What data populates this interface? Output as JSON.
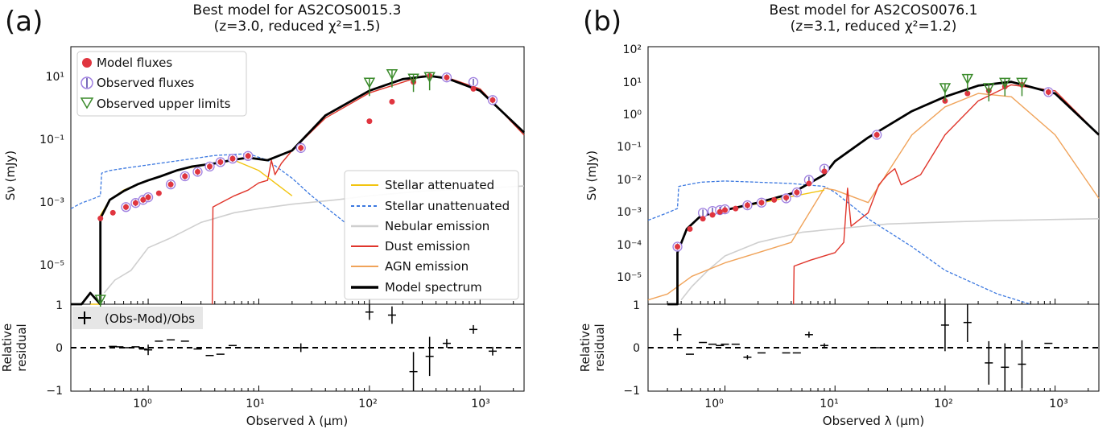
{
  "figure": {
    "panels": [
      {
        "panel_label": "(a)",
        "title_line1": "Best model for AS2COS0015.3",
        "title_line2": "(z=3.0, reduced χ²=1.5)"
      },
      {
        "panel_label": "(b)",
        "title_line1": "Best model for AS2COS0076.1",
        "title_line2": "(z=3.1, reduced χ²=1.2)"
      }
    ],
    "axes": {
      "ylabel_top": "Sν (mJy)",
      "ylabel_bottom_line1": "Relative",
      "ylabel_bottom_line2": "residual",
      "xlabel": "Observed λ (μm)",
      "x_tick_labels": [
        "10⁰",
        "10¹",
        "10²",
        "10³"
      ]
    },
    "legend_upper_left": [
      "Model fluxes",
      "Observed fluxes",
      "Observed upper limits"
    ],
    "legend_lower_right": [
      "Stellar attenuated",
      "Stellar unattenuated",
      "Nebular emission",
      "Dust emission",
      "AGN emission",
      "Model spectrum"
    ],
    "residual_legend": "(Obs-Mod)/Obs",
    "colors": {
      "stellar_attenuated": "#f2c40f",
      "stellar_unattenuated": "#3b78e0",
      "nebular": "#cfcfcf",
      "dust": "#e0352b",
      "agn": "#f0a35a",
      "model": "#000000",
      "model_flux": "#e0353f",
      "observed_flux": "#9f7fe0",
      "upper_limit": "#3a8a2a"
    }
  },
  "chart_data": [
    {
      "type": "scatter",
      "title": "Best model for AS2COS0015.3 (z=3.0, reduced χ²=1.5)",
      "xlabel": "Observed λ (μm)",
      "ylabel": "Sν (mJy)",
      "x_scale": "log",
      "y_scale": "log",
      "xlim": [
        0.2,
        2500
      ],
      "ylim": [
        9e-07,
        80
      ],
      "y_tick_labels": [
        "10¹",
        "10⁻¹",
        "10⁻³",
        "10⁻⁵"
      ],
      "grid": false,
      "legend_placement": [
        "upper-left",
        "lower-right"
      ],
      "series": [
        {
          "name": "Model fluxes",
          "x": [
            0.37,
            0.48,
            0.63,
            0.77,
            0.9,
            1.0,
            1.25,
            1.6,
            2.15,
            2.8,
            3.6,
            4.5,
            5.8,
            8.0,
            24,
            100,
            160,
            250,
            350,
            500,
            870,
            1300
          ],
          "y": [
            0.0004,
            0.0006,
            0.0009,
            0.0012,
            0.0015,
            0.0018,
            0.0024,
            0.0045,
            0.008,
            0.011,
            0.016,
            0.022,
            0.028,
            0.034,
            0.06,
            0.4,
            1.6,
            6.5,
            10.0,
            9.0,
            4.0,
            1.8
          ]
        },
        {
          "name": "Observed fluxes",
          "x": [
            0.63,
            0.77,
            0.9,
            1.0,
            1.6,
            2.15,
            2.8,
            3.6,
            4.5,
            5.8,
            8.0,
            24,
            500,
            870,
            1300
          ],
          "y": [
            0.0009,
            0.0012,
            0.0015,
            0.0018,
            0.0045,
            0.008,
            0.011,
            0.016,
            0.022,
            0.028,
            0.034,
            0.06,
            9.0,
            6.5,
            1.8
          ]
        },
        {
          "name": "Observed upper limits",
          "x": [
            0.37,
            100,
            160,
            250,
            350
          ],
          "y": [
            1.2e-06,
            6.0,
            11.0,
            8.0,
            9.0
          ]
        },
        {
          "name": "Stellar attenuated",
          "x": [
            0.3,
            0.37,
            0.37,
            0.45,
            0.6,
            0.8,
            1.0,
            1.3,
            1.8,
            2.5,
            4,
            6,
            10,
            20
          ],
          "y": [
            9e-07,
            9e-07,
            0.0005,
            0.0015,
            0.003,
            0.0045,
            0.006,
            0.008,
            0.012,
            0.015,
            0.02,
            0.025,
            0.012,
            0.002
          ]
        },
        {
          "name": "Stellar unattenuated",
          "x": [
            0.2,
            0.25,
            0.3,
            0.37,
            0.38,
            0.45,
            0.6,
            1.0,
            2,
            4,
            8,
            12,
            20,
            30,
            60
          ],
          "y": [
            0.0008,
            0.0012,
            0.0015,
            0.002,
            0.01,
            0.012,
            0.014,
            0.018,
            0.025,
            0.035,
            0.04,
            0.025,
            0.007,
            0.002,
            0.0003
          ]
        },
        {
          "name": "Nebular emission",
          "x": [
            0.4,
            0.5,
            0.7,
            1.0,
            1.6,
            3,
            6,
            10,
            20,
            50,
            100,
            300,
            1000,
            2500
          ],
          "y": [
            2e-06,
            5e-06,
            1e-05,
            5e-05,
            0.0001,
            0.0003,
            0.0006,
            0.0008,
            0.0011,
            0.0015,
            0.002,
            0.0028,
            0.0034,
            0.004
          ]
        },
        {
          "name": "Dust emission",
          "x": [
            3.8,
            3.85,
            4.5,
            6,
            8,
            10,
            12,
            13,
            14,
            16,
            20,
            40,
            100,
            300,
            500,
            1000,
            2500
          ],
          "y": [
            9e-07,
            0.0009,
            0.0012,
            0.002,
            0.003,
            0.005,
            0.006,
            0.025,
            0.009,
            0.02,
            0.05,
            0.5,
            3,
            10,
            9,
            4,
            0.15
          ]
        },
        {
          "name": "AGN emission",
          "x": [],
          "y": []
        },
        {
          "name": "Model spectrum",
          "x": [
            0.2,
            0.25,
            0.3,
            0.37,
            0.37,
            0.45,
            0.6,
            0.8,
            1.0,
            1.3,
            1.8,
            2.5,
            4,
            6,
            8,
            12,
            20,
            40,
            100,
            200,
            350,
            500,
            1000,
            2500
          ],
          "y": [
            9e-07,
            9e-07,
            2e-06,
            9e-07,
            0.0004,
            0.0015,
            0.0028,
            0.0045,
            0.006,
            0.008,
            0.012,
            0.016,
            0.02,
            0.026,
            0.03,
            0.025,
            0.05,
            0.6,
            3.5,
            8,
            10,
            8.5,
            3.5,
            0.18
          ]
        }
      ]
    },
    {
      "type": "scatter",
      "title": "Best model for AS2COS0076.1 (z=3.1, reduced χ²=1.2)",
      "xlabel": "Observed λ (μm)",
      "ylabel": "Sν (mJy)",
      "x_scale": "log",
      "y_scale": "log",
      "xlim": [
        0.2,
        2500
      ],
      "ylim": [
        3e-06,
        120
      ],
      "y_tick_labels": [
        "10²",
        "10¹",
        "10⁰",
        "10⁻¹",
        "10⁻²",
        "10⁻³",
        "10⁻⁴",
        "10⁻⁵"
      ],
      "grid": false,
      "series": [
        {
          "name": "Model fluxes",
          "x": [
            0.37,
            0.48,
            0.63,
            0.77,
            0.9,
            1.0,
            1.25,
            1.6,
            2.15,
            2.8,
            3.6,
            4.5,
            5.8,
            8.0,
            24,
            100,
            160,
            250,
            350,
            500,
            870
          ],
          "y": [
            0.00015,
            0.0005,
            0.001,
            0.0013,
            0.0016,
            0.0018,
            0.002,
            0.0025,
            0.003,
            0.0036,
            0.0042,
            0.006,
            0.011,
            0.025,
            0.3,
            3,
            5,
            6,
            8,
            9,
            5.5
          ]
        },
        {
          "name": "Observed fluxes",
          "x": [
            0.37,
            0.63,
            0.77,
            0.9,
            1.0,
            1.6,
            2.15,
            3.6,
            4.5,
            5.8,
            8.0,
            24,
            870
          ],
          "y": [
            0.00015,
            0.0015,
            0.0017,
            0.0018,
            0.0019,
            0.0025,
            0.003,
            0.004,
            0.006,
            0.014,
            0.03,
            0.3,
            5.5
          ]
        },
        {
          "name": "Observed upper limits",
          "x": [
            100,
            160,
            250,
            350,
            500
          ],
          "y": [
            7,
            13,
            7,
            10,
            10
          ]
        },
        {
          "name": "Stellar attenuated",
          "x": [
            0.37,
            0.37,
            0.45,
            0.6,
            1.0,
            2,
            4,
            8
          ],
          "y": [
            3e-06,
            0.0001,
            0.0005,
            0.0012,
            0.0018,
            0.0028,
            0.0045,
            0.007
          ]
        },
        {
          "name": "Stellar unattenuated",
          "x": [
            0.2,
            0.3,
            0.37,
            0.38,
            0.6,
            1.0,
            2,
            4,
            8,
            10,
            20,
            50,
            100,
            300,
            600
          ],
          "y": [
            0.0009,
            0.0015,
            0.002,
            0.009,
            0.012,
            0.013,
            0.012,
            0.011,
            0.009,
            0.006,
            0.001,
            0.00015,
            3e-05,
            6e-06,
            3e-06
          ]
        },
        {
          "name": "Nebular emission",
          "x": [
            0.4,
            0.5,
            0.7,
            1.0,
            2,
            5,
            10,
            30,
            100,
            300,
            1000,
            2500
          ],
          "y": [
            4e-06,
            1e-05,
            3e-05,
            8e-05,
            0.0002,
            0.0004,
            0.0005,
            0.0007,
            0.0008,
            0.00088,
            0.00095,
            0.001
          ]
        },
        {
          "name": "Dust emission",
          "x": [
            4.2,
            4.25,
            6,
            10,
            12,
            13,
            14,
            20,
            25,
            30,
            35,
            40,
            60,
            100,
            200,
            400,
            1000,
            2500
          ],
          "y": [
            3e-06,
            4e-05,
            6e-05,
            0.0001,
            0.0002,
            0.008,
            0.0006,
            0.0015,
            0.01,
            0.02,
            0.03,
            0.01,
            0.02,
            0.3,
            3,
            9,
            6,
            0.3
          ]
        },
        {
          "name": "AGN emission",
          "x": [
            0.2,
            0.3,
            0.5,
            1,
            2,
            4,
            8,
            10,
            20,
            50,
            100,
            200,
            400,
            1000,
            2500
          ],
          "y": [
            4e-06,
            6e-06,
            2e-05,
            5e-05,
            0.0001,
            0.0002,
            0.008,
            0.007,
            0.003,
            0.3,
            2,
            5,
            4,
            0.3,
            0.004
          ]
        },
        {
          "name": "Model spectrum",
          "x": [
            0.3,
            0.37,
            0.37,
            0.45,
            0.6,
            1.0,
            2,
            4,
            8,
            10,
            20,
            50,
            100,
            200,
            400,
            1000,
            2500
          ],
          "y": [
            3e-06,
            3e-06,
            0.0001,
            0.0005,
            0.0012,
            0.0018,
            0.003,
            0.0055,
            0.02,
            0.05,
            0.25,
            1.5,
            4,
            8.5,
            11,
            5,
            0.3
          ]
        }
      ]
    },
    {
      "type": "scatter",
      "title": "",
      "xlabel": "Observed λ (μm)",
      "ylabel": "Relative residual",
      "x_scale": "log",
      "xlim": [
        0.2,
        2500
      ],
      "ylim": [
        -1,
        1
      ],
      "y_tick_labels": [
        "1",
        "0",
        "−1"
      ],
      "series": [
        {
          "name": "(Obs-Mod)/Obs",
          "x": [
            0.48,
            0.55,
            0.63,
            0.77,
            0.9,
            1.0,
            1.25,
            1.6,
            2.15,
            2.8,
            3.6,
            4.5,
            5.8,
            8.0,
            24,
            100,
            160,
            250,
            350,
            500,
            870,
            1300
          ],
          "y": [
            0.03,
            0.02,
            0.0,
            0.02,
            -0.03,
            -0.05,
            0.15,
            0.18,
            0.15,
            -0.03,
            -0.18,
            -0.15,
            0.05,
            0.0,
            0.0,
            0.82,
            0.75,
            -0.55,
            -0.2,
            0.1,
            0.42,
            -0.08
          ],
          "err": [
            0.0,
            0.0,
            0.0,
            0.0,
            0.0,
            0.12,
            0.0,
            0.0,
            0.0,
            0.0,
            0.0,
            0.0,
            0.0,
            0.0,
            0.1,
            0.18,
            0.2,
            0.45,
            0.45,
            0.1,
            0.1,
            0.1
          ]
        }
      ]
    },
    {
      "type": "scatter",
      "title": "",
      "xlabel": "Observed λ (μm)",
      "ylabel": "Relative residual",
      "x_scale": "log",
      "xlim": [
        0.2,
        2500
      ],
      "ylim": [
        -1,
        1
      ],
      "y_tick_labels": [
        "1",
        "0",
        "−1"
      ],
      "series": [
        {
          "name": "(Obs-Mod)/Obs",
          "x": [
            0.37,
            0.48,
            0.63,
            0.77,
            0.9,
            1.0,
            1.25,
            1.6,
            2.15,
            3.6,
            4.5,
            5.8,
            8.0,
            24,
            100,
            160,
            250,
            350,
            500,
            870
          ],
          "y": [
            0.3,
            -0.15,
            0.12,
            0.08,
            0.05,
            0.08,
            0.08,
            -0.22,
            -0.12,
            -0.12,
            -0.12,
            0.3,
            0.05,
            0.0,
            0.52,
            0.58,
            -0.35,
            -0.45,
            -0.38,
            0.1
          ],
          "err": [
            0.15,
            0.0,
            0.0,
            0.0,
            0.0,
            0.0,
            0.0,
            0.05,
            0.0,
            0.0,
            0.0,
            0.07,
            0.05,
            0.0,
            0.6,
            0.45,
            0.5,
            0.55,
            0.55,
            0.0
          ]
        }
      ]
    }
  ]
}
